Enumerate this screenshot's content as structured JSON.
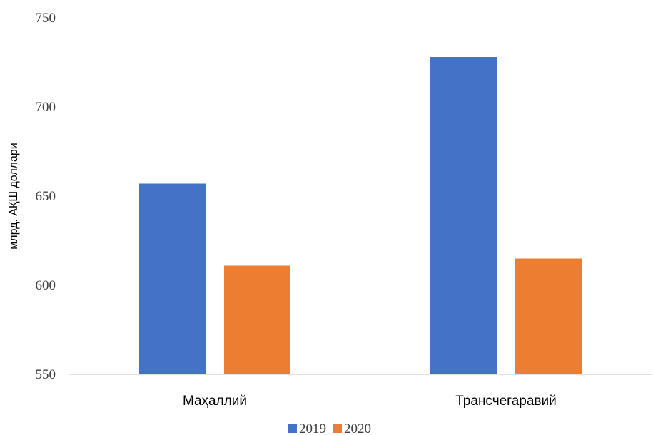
{
  "chart_data": {
    "type": "bar",
    "title": "",
    "xlabel": "",
    "ylabel": "млрд. АҚШ доллари",
    "categories": [
      "Маҳаллий",
      "Трансчегаравий"
    ],
    "series": [
      {
        "name": "2019",
        "values": [
          657,
          728
        ],
        "color": "#4472C4"
      },
      {
        "name": "2020",
        "values": [
          611,
          615
        ],
        "color": "#ED7D31"
      }
    ],
    "ylim": [
      550,
      750
    ],
    "yticks": [
      550,
      600,
      650,
      700,
      750
    ],
    "grid": false,
    "legend_position": "bottom"
  }
}
